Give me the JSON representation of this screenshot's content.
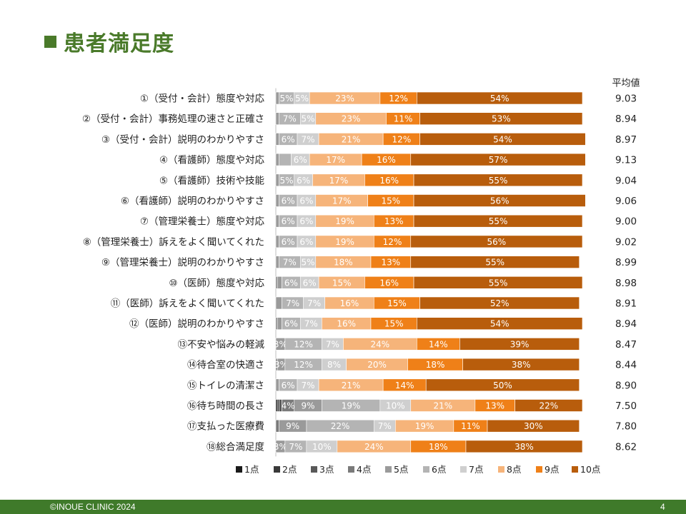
{
  "title": "患者満足度",
  "footer": {
    "copyright": "©INOUE CLINIC 2024",
    "page_number": "4"
  },
  "colors": {
    "title": "#4a7a2a",
    "footer_bg": "#3f7a2a",
    "series": [
      "#1a1a1a",
      "#3a3a3a",
      "#595959",
      "#7a7a7a",
      "#9a9a9a",
      "#b4b4b4",
      "#cfcfcf",
      "#f6b47a",
      "#ef8018",
      "#b85d0c"
    ]
  },
  "chart_data": {
    "type": "bar",
    "orientation": "horizontal",
    "stacked": true,
    "percent": true,
    "legend_position": "bottom",
    "average_header": "平均値",
    "series_names": [
      "1点",
      "2点",
      "3点",
      "4点",
      "5点",
      "6点",
      "7点",
      "8点",
      "9点",
      "10点"
    ],
    "rows": [
      {
        "label": "①（受付・会計）態度や対応",
        "values": [
          0,
          0,
          0,
          0,
          1,
          5,
          5,
          23,
          12,
          54
        ],
        "labels": [
          "",
          "",
          "",
          "",
          "",
          "5%",
          "5%",
          "23%",
          "12%",
          "54%"
        ],
        "average": "9.03"
      },
      {
        "label": "②（受付・会計）事務処理の速さと正確さ",
        "values": [
          0,
          0,
          0,
          0,
          1,
          7,
          5,
          23,
          11,
          53
        ],
        "labels": [
          "",
          "",
          "",
          "",
          "",
          "7%",
          "5%",
          "23%",
          "11%",
          "53%"
        ],
        "average": "8.94"
      },
      {
        "label": "③（受付・会計）説明のわかりやすさ",
        "values": [
          0,
          0,
          0,
          0,
          1,
          6,
          7,
          21,
          12,
          54
        ],
        "labels": [
          "",
          "",
          "",
          "",
          "",
          "6%",
          "7%",
          "21%",
          "12%",
          "54%"
        ],
        "average": "8.97"
      },
      {
        "label": "④（看護師）態度や対応",
        "values": [
          0,
          0,
          0,
          0,
          1,
          4,
          6,
          17,
          16,
          57
        ],
        "labels": [
          "",
          "",
          "",
          "",
          "",
          "",
          "6%",
          "17%",
          "16%",
          "57%"
        ],
        "average": "9.13"
      },
      {
        "label": "⑤（看護師）技術や技能",
        "values": [
          0,
          0,
          0,
          0,
          1,
          5,
          6,
          17,
          16,
          55
        ],
        "labels": [
          "",
          "",
          "",
          "",
          "",
          "5%",
          "6%",
          "17%",
          "16%",
          "55%"
        ],
        "average": "9.04"
      },
      {
        "label": "⑥（看護師）説明のわかりやすさ",
        "values": [
          0,
          0,
          0,
          0,
          1,
          6,
          6,
          17,
          15,
          56
        ],
        "labels": [
          "",
          "",
          "",
          "",
          "",
          "6%",
          "6%",
          "17%",
          "15%",
          "56%"
        ],
        "average": "9.06"
      },
      {
        "label": "⑦（管理栄養士）態度や対応",
        "values": [
          0,
          0,
          0,
          0,
          1,
          6,
          6,
          19,
          13,
          55
        ],
        "labels": [
          "",
          "",
          "",
          "",
          "",
          "6%",
          "6%",
          "19%",
          "13%",
          "55%"
        ],
        "average": "9.00"
      },
      {
        "label": "⑧（管理栄養士）訴えをよく聞いてくれた",
        "values": [
          0,
          0,
          0,
          0,
          1,
          6,
          6,
          19,
          12,
          56
        ],
        "labels": [
          "",
          "",
          "",
          "",
          "",
          "6%",
          "6%",
          "19%",
          "12%",
          "56%"
        ],
        "average": "9.02"
      },
      {
        "label": "⑨（管理栄養士）説明のわかりやすさ",
        "values": [
          0,
          0,
          0,
          0,
          1,
          7,
          5,
          18,
          13,
          55
        ],
        "labels": [
          "",
          "",
          "",
          "",
          "",
          "7%",
          "5%",
          "18%",
          "13%",
          "55%"
        ],
        "average": "8.99"
      },
      {
        "label": "⑩（医師）態度や対応",
        "values": [
          0,
          0,
          0,
          0.5,
          1.5,
          6,
          6,
          15,
          16,
          55
        ],
        "labels": [
          "",
          "",
          "",
          "",
          "",
          "6%",
          "6%",
          "15%",
          "16%",
          "55%"
        ],
        "average": "8.98"
      },
      {
        "label": "⑪（医師）訴えをよく聞いてくれた",
        "values": [
          0,
          0,
          0,
          0,
          2,
          7,
          7,
          16,
          15,
          52
        ],
        "labels": [
          "",
          "",
          "",
          "",
          "",
          "7%",
          "7%",
          "16%",
          "15%",
          "52%"
        ],
        "average": "8.91"
      },
      {
        "label": "⑫（医師）説明のわかりやすさ",
        "values": [
          0,
          0,
          0,
          0.5,
          1.5,
          6,
          7,
          16,
          15,
          54
        ],
        "labels": [
          "",
          "",
          "",
          "",
          "",
          "6%",
          "7%",
          "16%",
          "15%",
          "54%"
        ],
        "average": "8.94"
      },
      {
        "label": "⑬不安や悩みの軽減",
        "values": [
          0,
          0,
          0,
          0,
          3,
          12,
          7,
          24,
          14,
          39
        ],
        "labels": [
          "",
          "",
          "",
          "",
          "3%",
          "12%",
          "7%",
          "24%",
          "14%",
          "39%"
        ],
        "average": "8.47"
      },
      {
        "label": "⑭待合室の快適さ",
        "values": [
          0,
          0,
          0,
          0.5,
          2.5,
          12,
          8,
          20,
          18,
          38
        ],
        "labels": [
          "",
          "",
          "",
          "",
          "3%",
          "12%",
          "8%",
          "20%",
          "18%",
          "38%"
        ],
        "average": "8.44"
      },
      {
        "label": "⑮トイレの清潔さ",
        "values": [
          0,
          0,
          0,
          0,
          1,
          6,
          7,
          21,
          14,
          50
        ],
        "labels": [
          "",
          "",
          "",
          "",
          "",
          "6%",
          "7%",
          "21%",
          "14%",
          "50%"
        ],
        "average": "8.90"
      },
      {
        "label": "⑯待ち時間の長さ",
        "values": [
          0.5,
          0.5,
          1,
          4,
          9,
          19,
          10,
          21,
          13,
          22
        ],
        "labels": [
          "",
          "",
          "",
          "4%",
          "9%",
          "19%",
          "10%",
          "21%",
          "13%",
          "22%"
        ],
        "average": "7.50"
      },
      {
        "label": "⑰支払った医療費",
        "values": [
          0,
          0,
          0,
          1,
          9,
          22,
          7,
          19,
          11,
          30
        ],
        "labels": [
          "",
          "",
          "",
          "",
          "9%",
          "22%",
          "7%",
          "19%",
          "11%",
          "30%"
        ],
        "average": "7.80"
      },
      {
        "label": "⑱総合満足度",
        "values": [
          0,
          0,
          0,
          0,
          3,
          7,
          10,
          24,
          18,
          38
        ],
        "labels": [
          "",
          "",
          "",
          "",
          "3%",
          "7%",
          "10%",
          "24%",
          "18%",
          "38%"
        ],
        "average": "8.62"
      }
    ]
  }
}
